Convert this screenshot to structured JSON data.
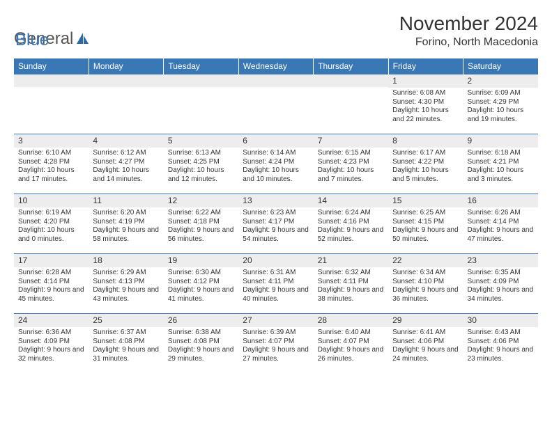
{
  "brand": {
    "part1": "General",
    "part2": "Blue"
  },
  "title": "November 2024",
  "location": "Forino, North Macedonia",
  "colors": {
    "header_bg": "#3a78b5",
    "header_text": "#ffffff",
    "daynum_bg": "#ededed",
    "border": "#3a78b5",
    "body_text": "#333333",
    "background": "#ffffff"
  },
  "days_of_week": [
    "Sunday",
    "Monday",
    "Tuesday",
    "Wednesday",
    "Thursday",
    "Friday",
    "Saturday"
  ],
  "weeks": [
    [
      {
        "n": "",
        "sr": "",
        "ss": "",
        "dl": ""
      },
      {
        "n": "",
        "sr": "",
        "ss": "",
        "dl": ""
      },
      {
        "n": "",
        "sr": "",
        "ss": "",
        "dl": ""
      },
      {
        "n": "",
        "sr": "",
        "ss": "",
        "dl": ""
      },
      {
        "n": "",
        "sr": "",
        "ss": "",
        "dl": ""
      },
      {
        "n": "1",
        "sr": "Sunrise: 6:08 AM",
        "ss": "Sunset: 4:30 PM",
        "dl": "Daylight: 10 hours and 22 minutes."
      },
      {
        "n": "2",
        "sr": "Sunrise: 6:09 AM",
        "ss": "Sunset: 4:29 PM",
        "dl": "Daylight: 10 hours and 19 minutes."
      }
    ],
    [
      {
        "n": "3",
        "sr": "Sunrise: 6:10 AM",
        "ss": "Sunset: 4:28 PM",
        "dl": "Daylight: 10 hours and 17 minutes."
      },
      {
        "n": "4",
        "sr": "Sunrise: 6:12 AM",
        "ss": "Sunset: 4:27 PM",
        "dl": "Daylight: 10 hours and 14 minutes."
      },
      {
        "n": "5",
        "sr": "Sunrise: 6:13 AM",
        "ss": "Sunset: 4:25 PM",
        "dl": "Daylight: 10 hours and 12 minutes."
      },
      {
        "n": "6",
        "sr": "Sunrise: 6:14 AM",
        "ss": "Sunset: 4:24 PM",
        "dl": "Daylight: 10 hours and 10 minutes."
      },
      {
        "n": "7",
        "sr": "Sunrise: 6:15 AM",
        "ss": "Sunset: 4:23 PM",
        "dl": "Daylight: 10 hours and 7 minutes."
      },
      {
        "n": "8",
        "sr": "Sunrise: 6:17 AM",
        "ss": "Sunset: 4:22 PM",
        "dl": "Daylight: 10 hours and 5 minutes."
      },
      {
        "n": "9",
        "sr": "Sunrise: 6:18 AM",
        "ss": "Sunset: 4:21 PM",
        "dl": "Daylight: 10 hours and 3 minutes."
      }
    ],
    [
      {
        "n": "10",
        "sr": "Sunrise: 6:19 AM",
        "ss": "Sunset: 4:20 PM",
        "dl": "Daylight: 10 hours and 0 minutes."
      },
      {
        "n": "11",
        "sr": "Sunrise: 6:20 AM",
        "ss": "Sunset: 4:19 PM",
        "dl": "Daylight: 9 hours and 58 minutes."
      },
      {
        "n": "12",
        "sr": "Sunrise: 6:22 AM",
        "ss": "Sunset: 4:18 PM",
        "dl": "Daylight: 9 hours and 56 minutes."
      },
      {
        "n": "13",
        "sr": "Sunrise: 6:23 AM",
        "ss": "Sunset: 4:17 PM",
        "dl": "Daylight: 9 hours and 54 minutes."
      },
      {
        "n": "14",
        "sr": "Sunrise: 6:24 AM",
        "ss": "Sunset: 4:16 PM",
        "dl": "Daylight: 9 hours and 52 minutes."
      },
      {
        "n": "15",
        "sr": "Sunrise: 6:25 AM",
        "ss": "Sunset: 4:15 PM",
        "dl": "Daylight: 9 hours and 50 minutes."
      },
      {
        "n": "16",
        "sr": "Sunrise: 6:26 AM",
        "ss": "Sunset: 4:14 PM",
        "dl": "Daylight: 9 hours and 47 minutes."
      }
    ],
    [
      {
        "n": "17",
        "sr": "Sunrise: 6:28 AM",
        "ss": "Sunset: 4:14 PM",
        "dl": "Daylight: 9 hours and 45 minutes."
      },
      {
        "n": "18",
        "sr": "Sunrise: 6:29 AM",
        "ss": "Sunset: 4:13 PM",
        "dl": "Daylight: 9 hours and 43 minutes."
      },
      {
        "n": "19",
        "sr": "Sunrise: 6:30 AM",
        "ss": "Sunset: 4:12 PM",
        "dl": "Daylight: 9 hours and 41 minutes."
      },
      {
        "n": "20",
        "sr": "Sunrise: 6:31 AM",
        "ss": "Sunset: 4:11 PM",
        "dl": "Daylight: 9 hours and 40 minutes."
      },
      {
        "n": "21",
        "sr": "Sunrise: 6:32 AM",
        "ss": "Sunset: 4:11 PM",
        "dl": "Daylight: 9 hours and 38 minutes."
      },
      {
        "n": "22",
        "sr": "Sunrise: 6:34 AM",
        "ss": "Sunset: 4:10 PM",
        "dl": "Daylight: 9 hours and 36 minutes."
      },
      {
        "n": "23",
        "sr": "Sunrise: 6:35 AM",
        "ss": "Sunset: 4:09 PM",
        "dl": "Daylight: 9 hours and 34 minutes."
      }
    ],
    [
      {
        "n": "24",
        "sr": "Sunrise: 6:36 AM",
        "ss": "Sunset: 4:09 PM",
        "dl": "Daylight: 9 hours and 32 minutes."
      },
      {
        "n": "25",
        "sr": "Sunrise: 6:37 AM",
        "ss": "Sunset: 4:08 PM",
        "dl": "Daylight: 9 hours and 31 minutes."
      },
      {
        "n": "26",
        "sr": "Sunrise: 6:38 AM",
        "ss": "Sunset: 4:08 PM",
        "dl": "Daylight: 9 hours and 29 minutes."
      },
      {
        "n": "27",
        "sr": "Sunrise: 6:39 AM",
        "ss": "Sunset: 4:07 PM",
        "dl": "Daylight: 9 hours and 27 minutes."
      },
      {
        "n": "28",
        "sr": "Sunrise: 6:40 AM",
        "ss": "Sunset: 4:07 PM",
        "dl": "Daylight: 9 hours and 26 minutes."
      },
      {
        "n": "29",
        "sr": "Sunrise: 6:41 AM",
        "ss": "Sunset: 4:06 PM",
        "dl": "Daylight: 9 hours and 24 minutes."
      },
      {
        "n": "30",
        "sr": "Sunrise: 6:43 AM",
        "ss": "Sunset: 4:06 PM",
        "dl": "Daylight: 9 hours and 23 minutes."
      }
    ]
  ]
}
